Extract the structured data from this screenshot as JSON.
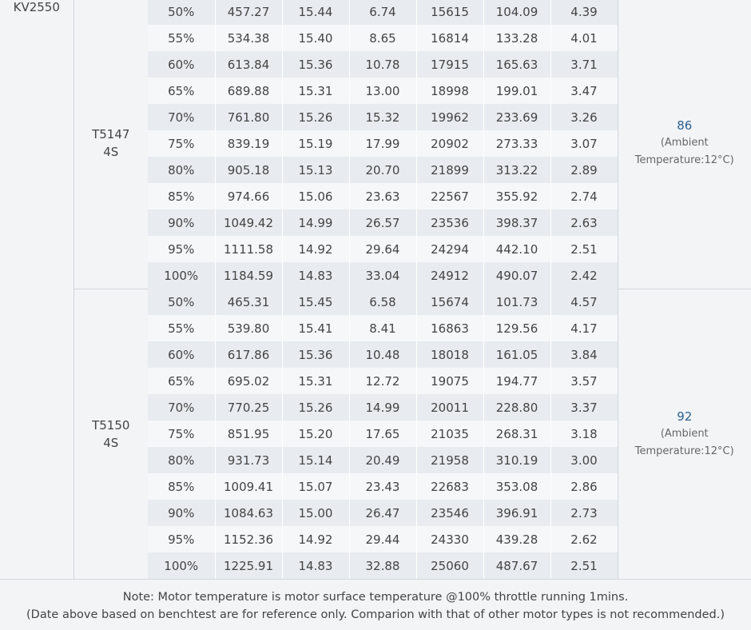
{
  "motor": "KV2550",
  "groups": [
    {
      "prop": "T5147",
      "battery": "4S",
      "temp_value": "86",
      "temp_note_1": "(Ambient",
      "temp_note_2": "Temperature:12°C)",
      "rows": [
        [
          "50%",
          "457.27",
          "15.44",
          "6.74",
          "15615",
          "104.09",
          "4.39"
        ],
        [
          "55%",
          "534.38",
          "15.40",
          "8.65",
          "16814",
          "133.28",
          "4.01"
        ],
        [
          "60%",
          "613.84",
          "15.36",
          "10.78",
          "17915",
          "165.63",
          "3.71"
        ],
        [
          "65%",
          "689.88",
          "15.31",
          "13.00",
          "18998",
          "199.01",
          "3.47"
        ],
        [
          "70%",
          "761.80",
          "15.26",
          "15.32",
          "19962",
          "233.69",
          "3.26"
        ],
        [
          "75%",
          "839.19",
          "15.19",
          "17.99",
          "20902",
          "273.33",
          "3.07"
        ],
        [
          "80%",
          "905.18",
          "15.13",
          "20.70",
          "21899",
          "313.22",
          "2.89"
        ],
        [
          "85%",
          "974.66",
          "15.06",
          "23.63",
          "22567",
          "355.92",
          "2.74"
        ],
        [
          "90%",
          "1049.42",
          "14.99",
          "26.57",
          "23536",
          "398.37",
          "2.63"
        ],
        [
          "95%",
          "1111.58",
          "14.92",
          "29.64",
          "24294",
          "442.10",
          "2.51"
        ],
        [
          "100%",
          "1184.59",
          "14.83",
          "33.04",
          "24912",
          "490.07",
          "2.42"
        ]
      ]
    },
    {
      "prop": "T5150",
      "battery": "4S",
      "temp_value": "92",
      "temp_note_1": "(Ambient",
      "temp_note_2": "Temperature:12°C)",
      "rows": [
        [
          "50%",
          "465.31",
          "15.45",
          "6.58",
          "15674",
          "101.73",
          "4.57"
        ],
        [
          "55%",
          "539.80",
          "15.41",
          "8.41",
          "16863",
          "129.56",
          "4.17"
        ],
        [
          "60%",
          "617.86",
          "15.36",
          "10.48",
          "18018",
          "161.05",
          "3.84"
        ],
        [
          "65%",
          "695.02",
          "15.31",
          "12.72",
          "19075",
          "194.77",
          "3.57"
        ],
        [
          "70%",
          "770.25",
          "15.26",
          "14.99",
          "20011",
          "228.80",
          "3.37"
        ],
        [
          "75%",
          "851.95",
          "15.20",
          "17.65",
          "21035",
          "268.31",
          "3.18"
        ],
        [
          "80%",
          "931.73",
          "15.14",
          "20.49",
          "21958",
          "310.19",
          "3.00"
        ],
        [
          "85%",
          "1009.41",
          "15.07",
          "23.43",
          "22683",
          "353.08",
          "2.86"
        ],
        [
          "90%",
          "1084.63",
          "15.00",
          "26.47",
          "23546",
          "396.91",
          "2.73"
        ],
        [
          "95%",
          "1152.36",
          "14.92",
          "29.44",
          "24330",
          "439.28",
          "2.62"
        ],
        [
          "100%",
          "1225.91",
          "14.83",
          "32.88",
          "25060",
          "487.67",
          "2.51"
        ]
      ]
    }
  ],
  "footer": {
    "line1": "Note: Motor temperature is motor surface temperature @100% throttle running 1mins.",
    "line2": "(Date above based on benchtest are for reference only. Comparion with that of other motor types is not recommended.)"
  }
}
